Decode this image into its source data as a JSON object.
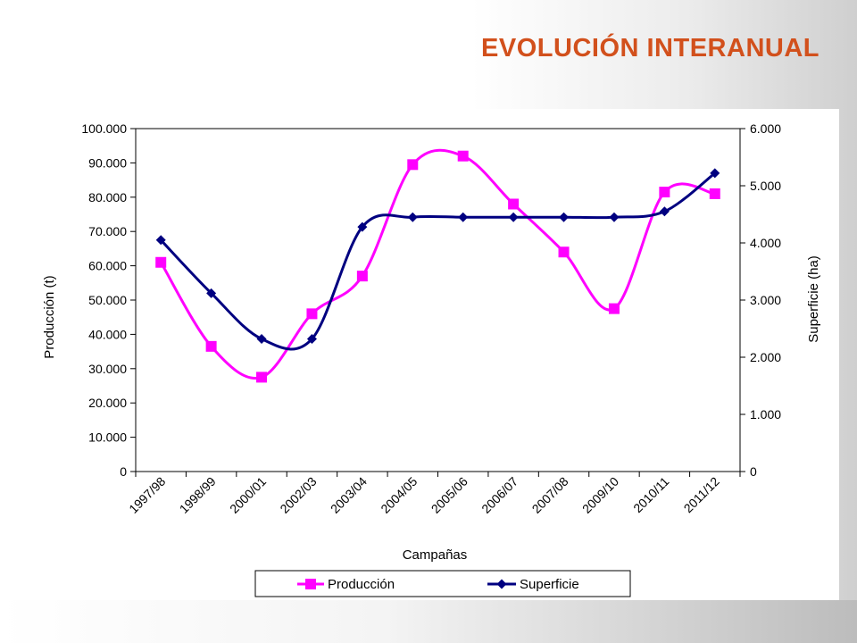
{
  "slide": {
    "title": "EVOLUCIÓN INTERANUAL"
  },
  "colors": {
    "title": "#d2501c",
    "produccion": "#ff00ff",
    "superficie": "#000080"
  },
  "chart_data": {
    "type": "line",
    "title": "",
    "xlabel": "Campañas",
    "ylabel": "Producción (t)",
    "y2label": "Superficie (ha)",
    "categories": [
      "1997/98",
      "1998/99",
      "2000/01",
      "2002/03",
      "2003/04",
      "2004/05",
      "2005/06",
      "2006/07",
      "2007/08",
      "2009/10",
      "2010/11",
      "2011/12"
    ],
    "ylim": [
      0,
      100000
    ],
    "y2lim": [
      0,
      6000
    ],
    "yticks": [
      "0",
      "10.000",
      "20.000",
      "30.000",
      "40.000",
      "50.000",
      "60.000",
      "70.000",
      "80.000",
      "90.000",
      "100.000"
    ],
    "y2ticks": [
      "0",
      "1.000",
      "2.000",
      "3.000",
      "4.000",
      "5.000",
      "6.000"
    ],
    "grid": false,
    "legend_position": "bottom",
    "series": [
      {
        "name": "Producción",
        "axis": "left",
        "marker": "square",
        "color": "#ff00ff",
        "values": [
          61000,
          36500,
          27500,
          46000,
          57000,
          89500,
          92000,
          78000,
          64000,
          47500,
          81500,
          81000
        ]
      },
      {
        "name": "Superficie",
        "axis": "right",
        "marker": "diamond",
        "color": "#000080",
        "values": [
          4050,
          3120,
          2320,
          2320,
          4280,
          4450,
          4450,
          4450,
          4450,
          4450,
          4550,
          5220
        ]
      }
    ]
  }
}
